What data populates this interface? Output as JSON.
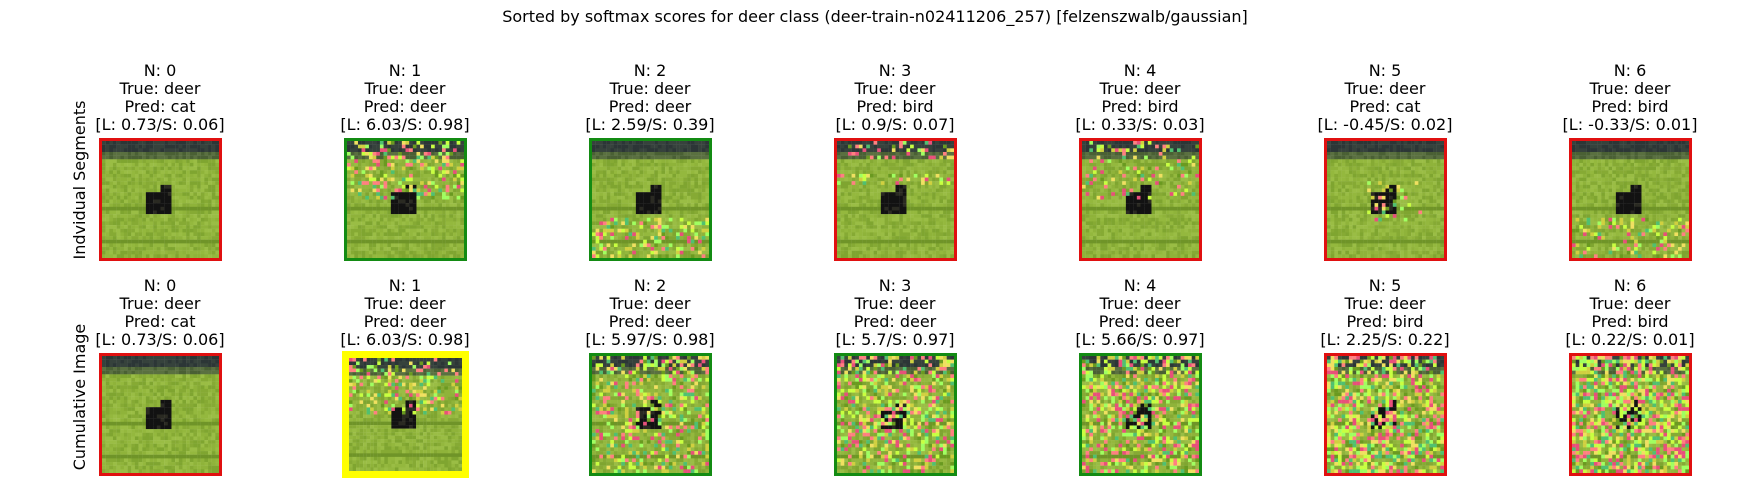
{
  "chart_data": {
    "type": "image-grid",
    "title": "Sorted by softmax scores for deer class (deer-train-n02411206_257) [felzenszwalb/gaussian]",
    "row_labels": [
      "Indvidual Segments",
      "Cumulative Image"
    ],
    "rows": [
      {
        "name": "Indvidual Segments",
        "panels": [
          {
            "n": "N: 0",
            "true": "True: deer",
            "pred": "Pred: cat",
            "score": "[L: 0.73/S: 0.06]",
            "status": "wrong",
            "noise": 0.0,
            "noise_region": "none"
          },
          {
            "n": "N: 1",
            "true": "True: deer",
            "pred": "Pred: deer",
            "score": "[L: 6.03/S: 0.98]",
            "status": "correct",
            "noise": 0.35,
            "noise_region": "top"
          },
          {
            "n": "N: 2",
            "true": "True: deer",
            "pred": "Pred: deer",
            "score": "[L: 2.59/S: 0.39]",
            "status": "correct",
            "noise": 0.35,
            "noise_region": "bottom"
          },
          {
            "n": "N: 3",
            "true": "True: deer",
            "pred": "Pred: bird",
            "score": "[L: 0.9/S: 0.07]",
            "status": "wrong",
            "noise": 0.25,
            "noise_region": "band"
          },
          {
            "n": "N: 4",
            "true": "True: deer",
            "pred": "Pred: bird",
            "score": "[L: 0.33/S: 0.03]",
            "status": "wrong",
            "noise": 0.2,
            "noise_region": "top"
          },
          {
            "n": "N: 5",
            "true": "True: deer",
            "pred": "Pred: cat",
            "score": "[L: -0.45/S: 0.02]",
            "status": "wrong",
            "noise": 0.2,
            "noise_region": "middle"
          },
          {
            "n": "N: 6",
            "true": "True: deer",
            "pred": "Pred: bird",
            "score": "[L: -0.33/S: 0.01]",
            "status": "wrong",
            "noise": 0.3,
            "noise_region": "bottom"
          }
        ]
      },
      {
        "name": "Cumulative Image",
        "panels": [
          {
            "n": "N: 0",
            "true": "True: deer",
            "pred": "Pred: cat",
            "score": "[L: 0.73/S: 0.06]",
            "status": "wrong",
            "noise": 0.0,
            "noise_region": "none"
          },
          {
            "n": "N: 1",
            "true": "True: deer",
            "pred": "Pred: deer",
            "score": "[L: 6.03/S: 0.98]",
            "status": "best",
            "noise": 0.35,
            "noise_region": "top"
          },
          {
            "n": "N: 2",
            "true": "True: deer",
            "pred": "Pred: deer",
            "score": "[L: 5.97/S: 0.98]",
            "status": "correct",
            "noise": 0.4,
            "noise_region": "all"
          },
          {
            "n": "N: 3",
            "true": "True: deer",
            "pred": "Pred: deer",
            "score": "[L: 5.7/S: 0.97]",
            "status": "correct",
            "noise": 0.5,
            "noise_region": "all"
          },
          {
            "n": "N: 4",
            "true": "True: deer",
            "pred": "Pred: deer",
            "score": "[L: 5.66/S: 0.97]",
            "status": "correct",
            "noise": 0.55,
            "noise_region": "all"
          },
          {
            "n": "N: 5",
            "true": "True: deer",
            "pred": "Pred: bird",
            "score": "[L: 2.25/S: 0.22]",
            "status": "wrong",
            "noise": 0.6,
            "noise_region": "all"
          },
          {
            "n": "N: 6",
            "true": "True: deer",
            "pred": "Pred: bird",
            "score": "[L: 0.22/S: 0.01]",
            "status": "wrong",
            "noise": 0.7,
            "noise_region": "all"
          }
        ]
      }
    ]
  },
  "colors": {
    "correct_border": "#138b13",
    "wrong_border": "#e01010",
    "best_border": "#ffff00",
    "grass": "#8fb33a",
    "sky": "#2f3a3a",
    "deer": "#141414"
  }
}
